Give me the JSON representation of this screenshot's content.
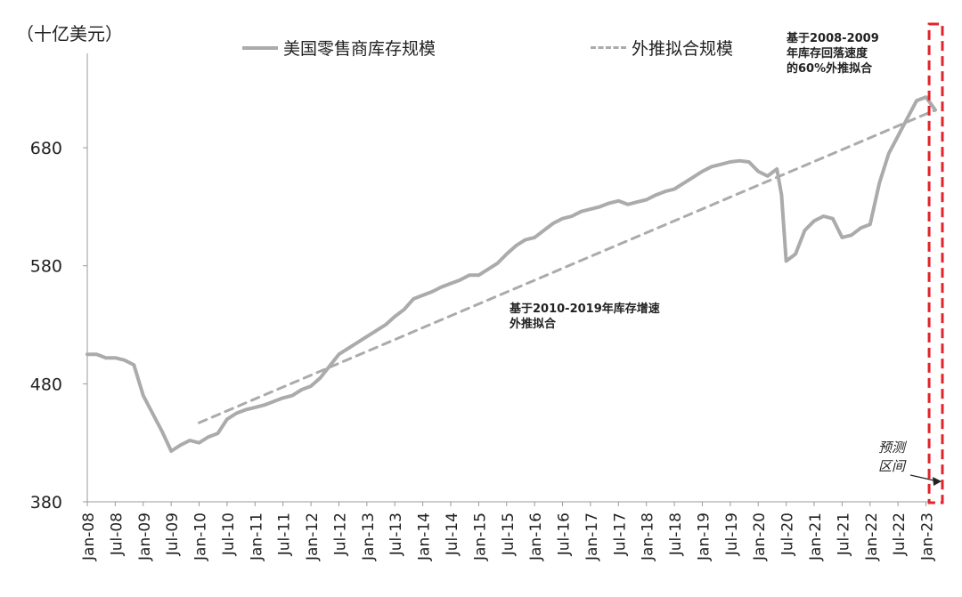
{
  "chart_data": {
    "type": "line",
    "unit_label": "（十亿美元）",
    "yticks": [
      380,
      480,
      580,
      680
    ],
    "ylim": [
      380,
      760
    ],
    "xticks": [
      "Jan-08",
      "Jul-08",
      "Jan-09",
      "Jul-09",
      "Jan-10",
      "Jul-10",
      "Jan-11",
      "Jul-11",
      "Jan-12",
      "Jul-12",
      "Jan-13",
      "Jul-13",
      "Jan-14",
      "Jul-14",
      "Jan-15",
      "Jul-15",
      "Jan-16",
      "Jul-16",
      "Jan-17",
      "Jul-17",
      "Jan-18",
      "Jul-18",
      "Jan-19",
      "Jul-19",
      "Jan-20",
      "Jul-20",
      "Jan-21",
      "Jul-21",
      "Jan-22",
      "Jul-22",
      "Jan-23"
    ],
    "legend": [
      "美国零售商库存规模",
      "外推拟合规模"
    ],
    "annotations": {
      "fit_2010_2019": "基于2010-2019年库存增速\n外推拟合",
      "fit_2008_2009": "基于2008-2009\n年库存回落速度\n的60%外推拟合",
      "forecast": "预测\n区间"
    },
    "series": [
      {
        "name": "美国零售商库存规模",
        "style": "solid",
        "color": "#ababab",
        "points": [
          [
            "Jan-08",
            505
          ],
          [
            "Mar-08",
            505
          ],
          [
            "May-08",
            502
          ],
          [
            "Jul-08",
            502
          ],
          [
            "Sep-08",
            500
          ],
          [
            "Nov-08",
            496
          ],
          [
            "Jan-09",
            470
          ],
          [
            "Mar-09",
            455
          ],
          [
            "May-09",
            440
          ],
          [
            "Jul-09",
            423
          ],
          [
            "Sep-09",
            428
          ],
          [
            "Nov-09",
            432
          ],
          [
            "Jan-10",
            430
          ],
          [
            "Mar-10",
            435
          ],
          [
            "May-10",
            438
          ],
          [
            "Jul-10",
            450
          ],
          [
            "Sep-10",
            455
          ],
          [
            "Nov-10",
            458
          ],
          [
            "Jan-11",
            460
          ],
          [
            "Mar-11",
            462
          ],
          [
            "May-11",
            465
          ],
          [
            "Jul-11",
            468
          ],
          [
            "Sep-11",
            470
          ],
          [
            "Nov-11",
            475
          ],
          [
            "Jan-12",
            478
          ],
          [
            "Mar-12",
            485
          ],
          [
            "May-12",
            495
          ],
          [
            "Jul-12",
            505
          ],
          [
            "Sep-12",
            510
          ],
          [
            "Nov-12",
            515
          ],
          [
            "Jan-13",
            520
          ],
          [
            "Mar-13",
            525
          ],
          [
            "May-13",
            530
          ],
          [
            "Jul-13",
            537
          ],
          [
            "Sep-13",
            543
          ],
          [
            "Nov-13",
            552
          ],
          [
            "Jan-14",
            555
          ],
          [
            "Mar-14",
            558
          ],
          [
            "May-14",
            562
          ],
          [
            "Jul-14",
            565
          ],
          [
            "Sep-14",
            568
          ],
          [
            "Nov-14",
            572
          ],
          [
            "Jan-15",
            572
          ],
          [
            "Mar-15",
            577
          ],
          [
            "May-15",
            582
          ],
          [
            "Jul-15",
            590
          ],
          [
            "Sep-15",
            597
          ],
          [
            "Nov-15",
            602
          ],
          [
            "Jan-16",
            604
          ],
          [
            "Mar-16",
            610
          ],
          [
            "May-16",
            616
          ],
          [
            "Jul-16",
            620
          ],
          [
            "Sep-16",
            622
          ],
          [
            "Nov-16",
            626
          ],
          [
            "Jan-17",
            628
          ],
          [
            "Mar-17",
            630
          ],
          [
            "May-17",
            633
          ],
          [
            "Jul-17",
            635
          ],
          [
            "Sep-17",
            632
          ],
          [
            "Nov-17",
            634
          ],
          [
            "Jan-18",
            636
          ],
          [
            "Mar-18",
            640
          ],
          [
            "May-18",
            643
          ],
          [
            "Jul-18",
            645
          ],
          [
            "Sep-18",
            650
          ],
          [
            "Nov-18",
            655
          ],
          [
            "Jan-19",
            660
          ],
          [
            "Mar-19",
            664
          ],
          [
            "May-19",
            666
          ],
          [
            "Jul-19",
            668
          ],
          [
            "Sep-19",
            669
          ],
          [
            "Nov-19",
            668
          ],
          [
            "Jan-20",
            660
          ],
          [
            "Mar-20",
            656
          ],
          [
            "May-20",
            662
          ],
          [
            "Jun-20",
            640
          ],
          [
            "Jul-20",
            584
          ],
          [
            "Sep-20",
            590
          ],
          [
            "Nov-20",
            610
          ],
          [
            "Jan-21",
            618
          ],
          [
            "Mar-21",
            622
          ],
          [
            "May-21",
            620
          ],
          [
            "Jul-21",
            604
          ],
          [
            "Sep-21",
            606
          ],
          [
            "Nov-21",
            612
          ],
          [
            "Jan-22",
            615
          ],
          [
            "Mar-22",
            650
          ],
          [
            "May-22",
            675
          ],
          [
            "Jul-22",
            690
          ],
          [
            "Sep-22",
            705
          ],
          [
            "Nov-22",
            720
          ],
          [
            "Jan-23",
            723
          ],
          [
            "Mar-23",
            712
          ]
        ]
      },
      {
        "name": "外推拟合规模",
        "style": "dashed",
        "color": "#ababab",
        "points": [
          [
            "Jan-10",
            447
          ],
          [
            "Mar-23",
            712
          ]
        ]
      }
    ],
    "forecast_region": {
      "start": "Nov-22",
      "end": "Mar-23",
      "color": "#e0242b"
    }
  }
}
